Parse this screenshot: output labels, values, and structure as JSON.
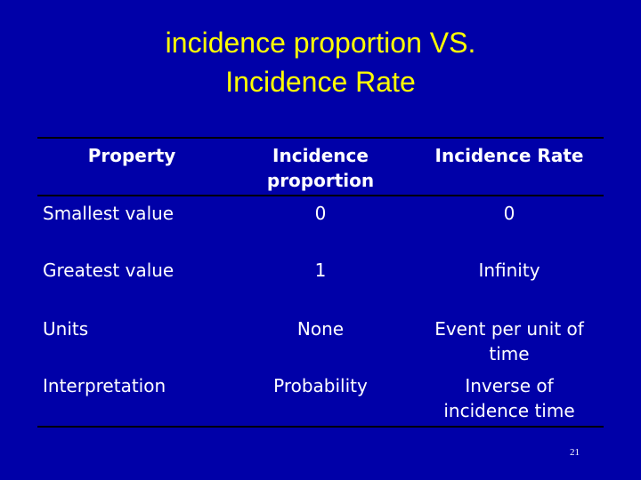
{
  "title": [
    "incidence proportion VS.",
    "Incidence Rate"
  ],
  "table": {
    "header": [
      "Property",
      "Incidence proportion",
      "Incidence Rate"
    ],
    "rows": [
      [
        "Smallest value",
        "0",
        "0"
      ],
      [
        "Greatest value",
        "1",
        "Infinity"
      ],
      [
        "Units",
        "None",
        "Event per unit of time"
      ],
      [
        "Interpretation",
        "Probability",
        "Inverse of incidence time"
      ]
    ]
  },
  "page_number": "21"
}
